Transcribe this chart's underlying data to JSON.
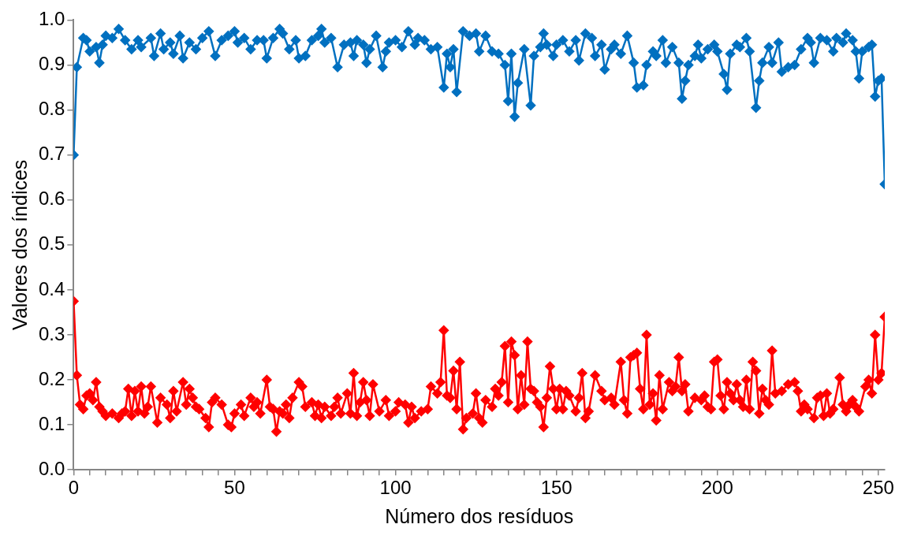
{
  "chart_data": {
    "type": "line",
    "xlabel": "Número dos resíduos",
    "ylabel": "Valores dos índices",
    "xlim": [
      0,
      252
    ],
    "ylim": [
      0,
      1
    ],
    "xticks": [
      0,
      {
        "value": 5,
        "label": null
      },
      {
        "value": 10,
        "label": null
      },
      {
        "value": 15,
        "label": null
      },
      {
        "value": 20,
        "label": null
      },
      {
        "value": 25,
        "label": null
      },
      {
        "value": 30,
        "label": null
      },
      {
        "value": 35,
        "label": null
      },
      {
        "value": 40,
        "label": null
      },
      {
        "value": 45,
        "label": null
      },
      50,
      {
        "value": 55,
        "label": null
      },
      {
        "value": 60,
        "label": null
      },
      {
        "value": 65,
        "label": null
      },
      {
        "value": 70,
        "label": null
      },
      {
        "value": 75,
        "label": null
      },
      {
        "value": 80,
        "label": null
      },
      {
        "value": 85,
        "label": null
      },
      {
        "value": 90,
        "label": null
      },
      {
        "value": 95,
        "label": null
      },
      100,
      {
        "value": 105,
        "label": null
      },
      {
        "value": 110,
        "label": null
      },
      {
        "value": 115,
        "label": null
      },
      {
        "value": 120,
        "label": null
      },
      {
        "value": 125,
        "label": null
      },
      {
        "value": 130,
        "label": null
      },
      {
        "value": 135,
        "label": null
      },
      {
        "value": 140,
        "label": null
      },
      {
        "value": 145,
        "label": null
      },
      150,
      {
        "value": 155,
        "label": null
      },
      {
        "value": 160,
        "label": null
      },
      {
        "value": 165,
        "label": null
      },
      {
        "value": 170,
        "label": null
      },
      {
        "value": 175,
        "label": null
      },
      {
        "value": 180,
        "label": null
      },
      {
        "value": 185,
        "label": null
      },
      {
        "value": 190,
        "label": null
      },
      {
        "value": 195,
        "label": null
      },
      200,
      {
        "value": 205,
        "label": null
      },
      {
        "value": 210,
        "label": null
      },
      {
        "value": 215,
        "label": null
      },
      {
        "value": 220,
        "label": null
      },
      {
        "value": 225,
        "label": null
      },
      {
        "value": 230,
        "label": null
      },
      {
        "value": 235,
        "label": null
      },
      {
        "value": 240,
        "label": null
      },
      {
        "value": 245,
        "label": null
      },
      250
    ],
    "yticks": [
      {
        "value": 0,
        "label": "0.0"
      },
      {
        "value": 0.1,
        "label": "0.1"
      },
      {
        "value": 0.2,
        "label": "0.2"
      },
      {
        "value": 0.3,
        "label": "0.3"
      },
      {
        "value": 0.4,
        "label": "0.4"
      },
      {
        "value": 0.5,
        "label": "0.5"
      },
      {
        "value": 0.6,
        "label": "0.6"
      },
      {
        "value": 0.7,
        "label": "0.7"
      },
      {
        "value": 0.8,
        "label": "0.8"
      },
      {
        "value": 0.9,
        "label": "0.9"
      },
      {
        "value": 1,
        "label": "1.0"
      }
    ],
    "grid": false,
    "legend": false,
    "marker": "diamond",
    "line_style": "solid",
    "series": [
      {
        "color": "#0070c0",
        "x": [
          0,
          1,
          3,
          4,
          5,
          7,
          8,
          9,
          10,
          12,
          14,
          16,
          18,
          20,
          21,
          24,
          25,
          27,
          28,
          30,
          31,
          33,
          34,
          36,
          38,
          40,
          42,
          44,
          46,
          48,
          50,
          51,
          53,
          55,
          57,
          59,
          60,
          62,
          64,
          65,
          67,
          69,
          70,
          72,
          74,
          76,
          77,
          78,
          80,
          82,
          84,
          86,
          87,
          88,
          90,
          91,
          92,
          94,
          96,
          97,
          98,
          100,
          102,
          104,
          106,
          107,
          109,
          111,
          113,
          115,
          116,
          117,
          118,
          119,
          121,
          123,
          125,
          126,
          128,
          130,
          132,
          134,
          135,
          136,
          137,
          138,
          140,
          142,
          143,
          145,
          146,
          147,
          149,
          150,
          152,
          154,
          156,
          157,
          159,
          161,
          162,
          164,
          165,
          167,
          168,
          170,
          172,
          174,
          175,
          177,
          178,
          180,
          181,
          183,
          184,
          186,
          188,
          189,
          190,
          191,
          193,
          194,
          195,
          197,
          199,
          200,
          202,
          203,
          204,
          206,
          207,
          209,
          210,
          212,
          213,
          214,
          216,
          217,
          219,
          220,
          222,
          224,
          226,
          228,
          229,
          230,
          232,
          234,
          236,
          237,
          239,
          240,
          242,
          243,
          244,
          245,
          247,
          248,
          249,
          250,
          251,
          252
        ],
        "values": [
          0.7,
          0.895,
          0.96,
          0.955,
          0.93,
          0.94,
          0.905,
          0.945,
          0.965,
          0.96,
          0.98,
          0.955,
          0.935,
          0.955,
          0.94,
          0.96,
          0.92,
          0.97,
          0.935,
          0.95,
          0.925,
          0.965,
          0.915,
          0.95,
          0.935,
          0.96,
          0.975,
          0.92,
          0.955,
          0.965,
          0.975,
          0.95,
          0.96,
          0.935,
          0.955,
          0.955,
          0.915,
          0.96,
          0.98,
          0.97,
          0.935,
          0.955,
          0.915,
          0.92,
          0.955,
          0.965,
          0.98,
          0.95,
          0.96,
          0.895,
          0.945,
          0.95,
          0.92,
          0.955,
          0.945,
          0.905,
          0.935,
          0.965,
          0.895,
          0.93,
          0.95,
          0.955,
          0.94,
          0.975,
          0.945,
          0.96,
          0.955,
          0.935,
          0.94,
          0.85,
          0.925,
          0.895,
          0.935,
          0.84,
          0.975,
          0.965,
          0.97,
          0.93,
          0.965,
          0.93,
          0.925,
          0.9,
          0.82,
          0.925,
          0.785,
          0.86,
          0.935,
          0.81,
          0.92,
          0.94,
          0.97,
          0.945,
          0.92,
          0.945,
          0.955,
          0.93,
          0.955,
          0.91,
          0.97,
          0.96,
          0.92,
          0.945,
          0.89,
          0.935,
          0.945,
          0.925,
          0.965,
          0.905,
          0.85,
          0.855,
          0.9,
          0.93,
          0.92,
          0.955,
          0.905,
          0.94,
          0.905,
          0.825,
          0.865,
          0.9,
          0.92,
          0.945,
          0.915,
          0.935,
          0.945,
          0.93,
          0.88,
          0.845,
          0.925,
          0.945,
          0.94,
          0.96,
          0.93,
          0.805,
          0.865,
          0.905,
          0.94,
          0.905,
          0.95,
          0.885,
          0.895,
          0.9,
          0.935,
          0.96,
          0.95,
          0.905,
          0.96,
          0.955,
          0.93,
          0.96,
          0.95,
          0.97,
          0.955,
          0.93,
          0.87,
          0.93,
          0.94,
          0.945,
          0.83,
          0.865,
          0.87,
          0.635
        ]
      },
      {
        "color": "#ff0000",
        "x": [
          0,
          1,
          2,
          3,
          4,
          5,
          6,
          7,
          8,
          9,
          10,
          12,
          14,
          15,
          16,
          17,
          18,
          19,
          20,
          21,
          22,
          23,
          24,
          26,
          27,
          29,
          30,
          31,
          32,
          34,
          35,
          36,
          37,
          38,
          39,
          41,
          42,
          43,
          44,
          46,
          48,
          49,
          50,
          52,
          53,
          55,
          56,
          57,
          58,
          60,
          61,
          62,
          63,
          64,
          65,
          66,
          67,
          68,
          70,
          71,
          72,
          74,
          75,
          76,
          77,
          78,
          80,
          81,
          82,
          83,
          85,
          86,
          87,
          88,
          89,
          90,
          91,
          92,
          93,
          95,
          97,
          98,
          100,
          101,
          103,
          104,
          105,
          106,
          108,
          110,
          111,
          113,
          114,
          115,
          116,
          117,
          118,
          119,
          120,
          121,
          122,
          124,
          125,
          126,
          127,
          128,
          130,
          131,
          132,
          133,
          134,
          135,
          136,
          137,
          138,
          139,
          140,
          141,
          142,
          143,
          144,
          145,
          146,
          147,
          148,
          149,
          150,
          151,
          152,
          153,
          154,
          156,
          157,
          158,
          159,
          160,
          162,
          164,
          165,
          167,
          168,
          170,
          171,
          172,
          173,
          174,
          175,
          176,
          177,
          178,
          179,
          180,
          181,
          182,
          183,
          185,
          186,
          187,
          188,
          189,
          190,
          191,
          193,
          195,
          196,
          197,
          198,
          199,
          200,
          201,
          202,
          203,
          204,
          205,
          206,
          207,
          208,
          209,
          210,
          211,
          212,
          213,
          214,
          215,
          216,
          217,
          218,
          220,
          222,
          224,
          225,
          226,
          227,
          228,
          230,
          231,
          232,
          233,
          234,
          235,
          236,
          238,
          239,
          240,
          241,
          242,
          243,
          244,
          246,
          247,
          248,
          249,
          250,
          251,
          252
        ],
        "values": [
          0.375,
          0.21,
          0.145,
          0.135,
          0.165,
          0.17,
          0.155,
          0.195,
          0.14,
          0.13,
          0.12,
          0.125,
          0.115,
          0.125,
          0.13,
          0.18,
          0.12,
          0.175,
          0.13,
          0.185,
          0.125,
          0.14,
          0.185,
          0.105,
          0.16,
          0.145,
          0.115,
          0.175,
          0.13,
          0.195,
          0.145,
          0.18,
          0.16,
          0.14,
          0.135,
          0.115,
          0.095,
          0.15,
          0.16,
          0.145,
          0.1,
          0.095,
          0.125,
          0.145,
          0.12,
          0.16,
          0.14,
          0.15,
          0.125,
          0.2,
          0.14,
          0.135,
          0.085,
          0.13,
          0.125,
          0.145,
          0.115,
          0.16,
          0.195,
          0.185,
          0.14,
          0.15,
          0.12,
          0.145,
          0.115,
          0.14,
          0.12,
          0.14,
          0.16,
          0.125,
          0.17,
          0.125,
          0.215,
          0.12,
          0.15,
          0.195,
          0.155,
          0.12,
          0.19,
          0.13,
          0.155,
          0.12,
          0.13,
          0.15,
          0.145,
          0.105,
          0.14,
          0.115,
          0.13,
          0.135,
          0.185,
          0.17,
          0.195,
          0.31,
          0.165,
          0.16,
          0.22,
          0.135,
          0.24,
          0.09,
          0.115,
          0.125,
          0.17,
          0.115,
          0.105,
          0.155,
          0.14,
          0.18,
          0.165,
          0.195,
          0.275,
          0.15,
          0.285,
          0.255,
          0.135,
          0.21,
          0.145,
          0.285,
          0.18,
          0.175,
          0.15,
          0.14,
          0.095,
          0.16,
          0.23,
          0.18,
          0.135,
          0.18,
          0.135,
          0.175,
          0.165,
          0.13,
          0.16,
          0.215,
          0.115,
          0.13,
          0.21,
          0.175,
          0.155,
          0.16,
          0.145,
          0.24,
          0.155,
          0.125,
          0.25,
          0.255,
          0.26,
          0.18,
          0.135,
          0.3,
          0.145,
          0.17,
          0.11,
          0.21,
          0.135,
          0.195,
          0.175,
          0.185,
          0.25,
          0.175,
          0.19,
          0.13,
          0.16,
          0.155,
          0.165,
          0.14,
          0.135,
          0.24,
          0.245,
          0.165,
          0.135,
          0.195,
          0.17,
          0.155,
          0.19,
          0.155,
          0.14,
          0.2,
          0.135,
          0.24,
          0.22,
          0.125,
          0.18,
          0.155,
          0.145,
          0.265,
          0.17,
          0.175,
          0.19,
          0.195,
          0.175,
          0.13,
          0.145,
          0.135,
          0.115,
          0.16,
          0.165,
          0.12,
          0.17,
          0.125,
          0.135,
          0.205,
          0.145,
          0.13,
          0.145,
          0.155,
          0.14,
          0.13,
          0.185,
          0.2,
          0.17,
          0.3,
          0.2,
          0.215,
          0.34
        ]
      }
    ]
  }
}
